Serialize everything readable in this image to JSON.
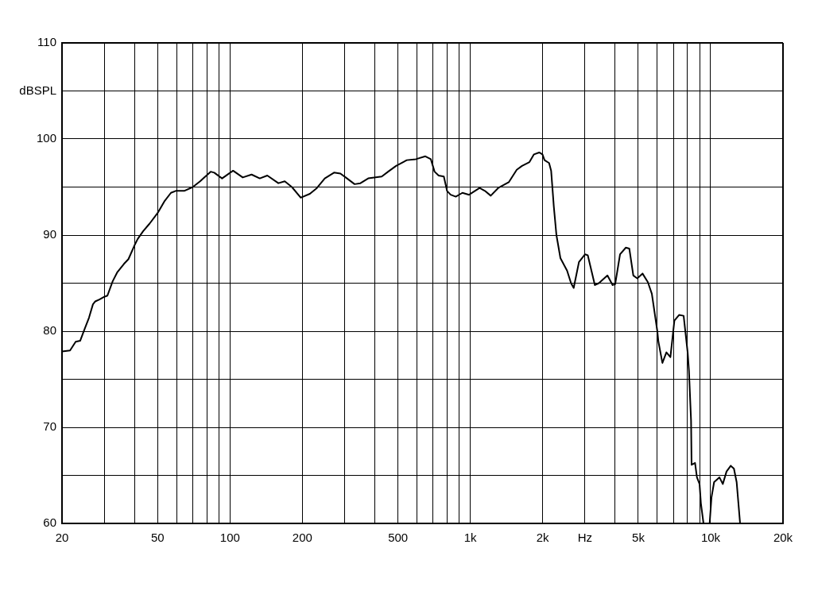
{
  "chart_data": {
    "type": "line",
    "log": "x",
    "grid": true,
    "legend": false,
    "marker": "none",
    "line_style": "solid",
    "xlim": [
      20,
      20000
    ],
    "xticks": [
      20,
      {
        "value": 30,
        "label": null
      },
      {
        "value": 40,
        "label": null
      },
      50,
      {
        "value": 60,
        "label": null
      },
      {
        "value": 70,
        "label": null
      },
      {
        "value": 80,
        "label": null
      },
      {
        "value": 90,
        "label": null
      },
      100,
      200,
      {
        "value": 300,
        "label": null
      },
      {
        "value": 400,
        "label": null
      },
      500,
      {
        "value": 600,
        "label": null
      },
      {
        "value": 700,
        "label": null
      },
      {
        "value": 800,
        "label": null
      },
      {
        "value": 900,
        "label": null
      },
      {
        "value": 1000,
        "label": "1k"
      },
      {
        "value": 2000,
        "label": "2k"
      },
      {
        "value": 3000,
        "label": "Hz"
      },
      {
        "value": 4000,
        "label": null
      },
      {
        "value": 5000,
        "label": "5k"
      },
      {
        "value": 6000,
        "label": null
      },
      {
        "value": 7000,
        "label": null
      },
      {
        "value": 8000,
        "label": null
      },
      {
        "value": 9000,
        "label": null
      },
      {
        "value": 10000,
        "label": "10k"
      },
      {
        "value": 20000,
        "label": "20k"
      }
    ],
    "ylim": [
      60,
      110
    ],
    "yticks": [
      60,
      {
        "value": 65,
        "label": null
      },
      70,
      {
        "value": 75,
        "label": null
      },
      80,
      {
        "value": 85,
        "label": null
      },
      90,
      {
        "value": 95,
        "label": null
      },
      100,
      {
        "value": 105,
        "label": "dBSPL"
      },
      110
    ],
    "x": [
      20,
      21.6,
      22.8,
      23.8,
      24.9,
      25.9,
      26.9,
      27.5,
      28.6,
      30.1,
      30.9,
      32.5,
      33.9,
      36.2,
      37.8,
      40,
      41.3,
      43.5,
      46.3,
      50,
      53.3,
      56.8,
      59.5,
      64.5,
      70,
      75.1,
      83.1,
      86,
      92.7,
      103,
      113,
      123,
      133,
      143,
      159,
      169,
      181,
      197,
      215,
      230,
      248,
      271,
      288,
      303,
      330,
      349,
      376,
      428,
      455,
      491,
      544,
      594,
      650,
      685,
      710,
      738,
      776,
      800,
      828,
      870,
      927,
      988,
      1093,
      1150,
      1216,
      1306,
      1445,
      1560,
      1641,
      1762,
      1840,
      1935,
      1996,
      2036,
      2127,
      2169,
      2225,
      2282,
      2371,
      2527,
      2625,
      2692,
      2832,
      3003,
      3082,
      3298,
      3427,
      3720,
      3910,
      4008,
      4198,
      4438,
      4587,
      4767,
      4952,
      5206,
      5480,
      5693,
      6000,
      6063,
      6299,
      6545,
      6800,
      7065,
      7400,
      7720,
      8022,
      8123,
      8289,
      8331,
      8611,
      8768,
      8991,
      9107,
      9338,
      9600,
      9903,
      10079,
      10337,
      10876,
      11234,
      11645,
      12124,
      12499,
      12828,
      13259
    ],
    "series": [
      {
        "color": "#000000",
        "values": [
          77.9,
          78.0,
          78.9,
          79.0,
          80.3,
          81.4,
          82.8,
          83.1,
          83.3,
          83.6,
          83.7,
          85.2,
          86.1,
          87.0,
          87.5,
          88.9,
          89.6,
          90.4,
          91.2,
          92.3,
          93.5,
          94.4,
          94.6,
          94.6,
          95.0,
          95.6,
          96.6,
          96.5,
          95.9,
          96.7,
          96.0,
          96.3,
          95.9,
          96.2,
          95.4,
          95.6,
          95.0,
          93.9,
          94.3,
          94.9,
          95.9,
          96.5,
          96.4,
          96.0,
          95.3,
          95.4,
          95.9,
          96.1,
          96.6,
          97.2,
          97.8,
          97.9,
          98.2,
          97.9,
          96.6,
          96.2,
          96.1,
          94.6,
          94.2,
          94.0,
          94.4,
          94.2,
          94.9,
          94.6,
          94.1,
          94.9,
          95.5,
          96.8,
          97.2,
          97.6,
          98.4,
          98.6,
          98.4,
          97.8,
          97.5,
          96.7,
          93.0,
          90.0,
          87.6,
          86.3,
          85.0,
          84.5,
          87.2,
          88.0,
          87.9,
          84.8,
          85.0,
          85.8,
          84.8,
          84.9,
          88.0,
          88.7,
          88.6,
          85.8,
          85.5,
          86.0,
          85.1,
          83.9,
          80.0,
          78.9,
          76.7,
          77.8,
          77.3,
          81.1,
          81.7,
          81.6,
          77.8,
          75.9,
          70.7,
          66.1,
          66.3,
          64.8,
          64.1,
          62.1,
          60.0,
          null,
          60.0,
          62.7,
          64.3,
          64.8,
          64.1,
          65.4,
          66.0,
          65.7,
          64.3,
          60.0
        ]
      }
    ]
  }
}
